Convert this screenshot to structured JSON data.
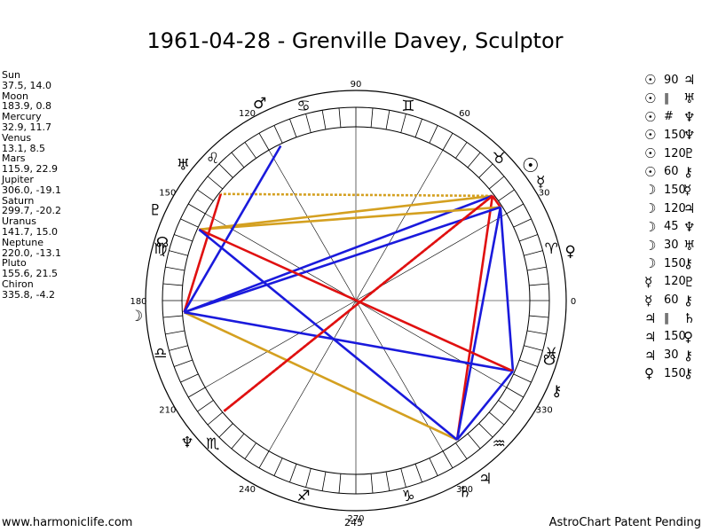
{
  "title": "1961-04-28 - Grenville Davey, Sculptor",
  "footer": {
    "website": "www.harmoniclife.com",
    "center_value": "245",
    "credit": "AstroChart Patent Pending"
  },
  "planets": [
    {
      "name": "Sun",
      "coords": "37.5, 14.0"
    },
    {
      "name": "Moon",
      "coords": "183.9, 0.8"
    },
    {
      "name": "Mercury",
      "coords": "32.9, 11.7"
    },
    {
      "name": "Venus",
      "coords": "13.1, 8.5"
    },
    {
      "name": "Mars",
      "coords": "115.9, 22.9"
    },
    {
      "name": "Jupiter",
      "coords": "306.0, -19.1"
    },
    {
      "name": "Saturn",
      "coords": "299.7, -20.2"
    },
    {
      "name": "Uranus",
      "coords": "141.7, 15.0"
    },
    {
      "name": "Neptune",
      "coords": "220.0, -13.1"
    },
    {
      "name": "Pluto",
      "coords": "155.6, 21.5"
    },
    {
      "name": "Chiron",
      "coords": "335.8, -4.2"
    }
  ],
  "aspects": [
    {
      "p1": "☉",
      "sym": "90",
      "p2": "♃"
    },
    {
      "p1": "☉",
      "sym": "∥",
      "p2": "♅"
    },
    {
      "p1": "☉",
      "sym": "#",
      "p2": "♆"
    },
    {
      "p1": "☉",
      "sym": "150",
      "p2": "♆"
    },
    {
      "p1": "☉",
      "sym": "120",
      "p2": "♇"
    },
    {
      "p1": "☉",
      "sym": "60",
      "p2": "⚷"
    },
    {
      "p1": "☽",
      "sym": "150",
      "p2": "☿"
    },
    {
      "p1": "☽",
      "sym": "120",
      "p2": "♃"
    },
    {
      "p1": "☽",
      "sym": "45",
      "p2": "♆"
    },
    {
      "p1": "☽",
      "sym": "30",
      "p2": "♅"
    },
    {
      "p1": "☽",
      "sym": "150",
      "p2": "⚷"
    },
    {
      "p1": "☿",
      "sym": "120",
      "p2": "♇"
    },
    {
      "p1": "☿",
      "sym": "60",
      "p2": "⚷"
    },
    {
      "p1": "♃",
      "sym": "∥",
      "p2": "♄"
    },
    {
      "p1": "♃",
      "sym": "150",
      "p2": "♀"
    },
    {
      "p1": "♃",
      "sym": "30",
      "p2": "⚷"
    },
    {
      "p1": "♀",
      "sym": "150",
      "p2": "⚷"
    }
  ],
  "chart_data": {
    "type": "astrology-wheel",
    "degree_labels": [
      "0",
      "30",
      "60",
      "90",
      "120",
      "150",
      "180",
      "210",
      "240",
      "270",
      "300",
      "330"
    ],
    "planets": [
      {
        "name": "Sun",
        "glyph": "☉",
        "longitude": 37.5
      },
      {
        "name": "Moon",
        "glyph": "☽",
        "longitude": 183.9
      },
      {
        "name": "Mercury",
        "glyph": "☿",
        "longitude": 32.9
      },
      {
        "name": "Venus",
        "glyph": "♀",
        "longitude": 13.1
      },
      {
        "name": "Mars",
        "glyph": "♂",
        "longitude": 115.9
      },
      {
        "name": "Jupiter",
        "glyph": "♃",
        "longitude": 306.0
      },
      {
        "name": "Saturn",
        "glyph": "♄",
        "longitude": 299.7
      },
      {
        "name": "Uranus",
        "glyph": "♅",
        "longitude": 141.7
      },
      {
        "name": "Neptune",
        "glyph": "♆",
        "longitude": 220.0
      },
      {
        "name": "Pluto",
        "glyph": "♇",
        "longitude": 155.6
      },
      {
        "name": "Chiron",
        "glyph": "⚷",
        "longitude": 335.8
      }
    ],
    "sign_glyphs": [
      {
        "glyph": "♈",
        "longitude": 15
      },
      {
        "glyph": "♉",
        "longitude": 45
      },
      {
        "glyph": "♊",
        "longitude": 75
      },
      {
        "glyph": "♋",
        "longitude": 105
      },
      {
        "glyph": "♌",
        "longitude": 135
      },
      {
        "glyph": "♍",
        "longitude": 165
      },
      {
        "glyph": "♎",
        "longitude": 195
      },
      {
        "glyph": "♏",
        "longitude": 225
      },
      {
        "glyph": "♐",
        "longitude": 255
      },
      {
        "glyph": "♑",
        "longitude": 285
      },
      {
        "glyph": "♒",
        "longitude": 315
      },
      {
        "glyph": "♓",
        "longitude": 345
      }
    ],
    "node_glyphs": [
      {
        "glyph": "☊",
        "longitude": 163
      },
      {
        "glyph": "☋",
        "longitude": 343
      }
    ],
    "aspect_lines": [
      {
        "from": "Sun",
        "to": "Mercury",
        "color": "#e01010",
        "style": "solid"
      },
      {
        "from": "Sun",
        "to": "Uranus",
        "color": "#d4a020",
        "style": "dotted"
      },
      {
        "from": "Sun",
        "to": "Pluto",
        "color": "#d4a020",
        "style": "solid"
      },
      {
        "from": "Sun",
        "to": "Jupiter",
        "color": "#e01010",
        "style": "solid"
      },
      {
        "from": "Sun",
        "to": "Neptune",
        "color": "#e01010",
        "style": "dotted"
      },
      {
        "from": "Sun",
        "to": "Moon",
        "color": "#1a1adc",
        "style": "solid"
      },
      {
        "from": "Mercury",
        "to": "Pluto",
        "color": "#d4a020",
        "style": "solid"
      },
      {
        "from": "Mercury",
        "to": "Jupiter",
        "color": "#1a1adc",
        "style": "solid"
      },
      {
        "from": "Mercury",
        "to": "Chiron",
        "color": "#1a1adc",
        "style": "solid"
      },
      {
        "from": "Moon",
        "to": "Mercury",
        "color": "#1a1adc",
        "style": "solid"
      },
      {
        "from": "Moon",
        "to": "Jupiter",
        "color": "#d4a020",
        "style": "solid"
      },
      {
        "from": "Moon",
        "to": "Chiron",
        "color": "#1a1adc",
        "style": "solid"
      },
      {
        "from": "Moon",
        "to": "Uranus",
        "color": "#e01010",
        "style": "solid"
      },
      {
        "from": "Moon",
        "to": "Mars",
        "color": "#1a1adc",
        "style": "solid"
      },
      {
        "from": "Pluto",
        "to": "Chiron",
        "color": "#e01010",
        "style": "solid"
      },
      {
        "from": "Pluto",
        "to": "Jupiter",
        "color": "#1a1adc",
        "style": "solid"
      },
      {
        "from": "Jupiter",
        "to": "Chiron",
        "color": "#1a1adc",
        "style": "solid"
      },
      {
        "from": "Neptune",
        "to": "Sun",
        "color": "#e01010",
        "style": "solid"
      }
    ],
    "colors": {
      "red": "#e01010",
      "blue": "#1a1adc",
      "gold": "#d4a020",
      "ring": "#000000"
    }
  }
}
